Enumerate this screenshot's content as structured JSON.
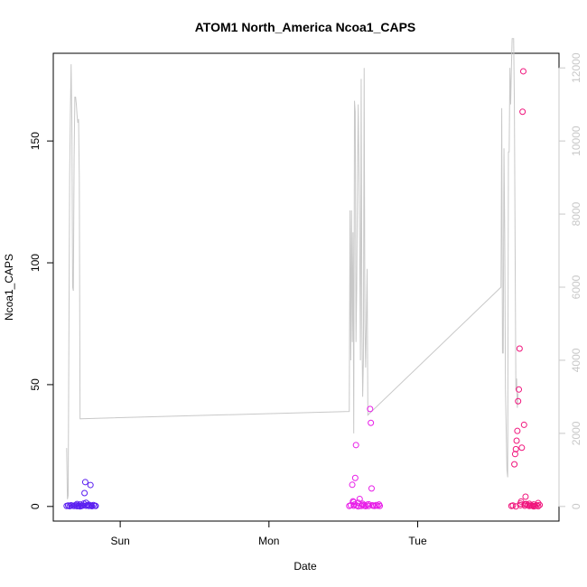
{
  "chart_data": {
    "type": "scatter",
    "title": "ATOM1 North_America Ncoa1_CAPS",
    "xlabel": "Date",
    "ylabel": "Ncoa1_CAPS",
    "x_unit": "days",
    "x_ticks": [
      {
        "label": "Sun",
        "value": 1.0
      },
      {
        "label": "Mon",
        "value": 2.0
      },
      {
        "label": "Tue",
        "value": 3.0
      }
    ],
    "xlim": [
      0.55,
      3.95
    ],
    "ylim": [
      -6,
      186
    ],
    "y_ticks": [
      0,
      50,
      100,
      150
    ],
    "y2lim": [
      -400,
      12400
    ],
    "y2_ticks": [
      0,
      2000,
      4000,
      6000,
      8000,
      10000,
      12000
    ],
    "grid": false,
    "series": [
      {
        "color": "#5a1ef0",
        "points": [
          [
            0.64,
            0.2
          ],
          [
            0.65,
            0.4
          ],
          [
            0.66,
            0.1
          ],
          [
            0.67,
            0.5
          ],
          [
            0.68,
            0.3
          ],
          [
            0.69,
            0.2
          ],
          [
            0.7,
            0.6
          ],
          [
            0.71,
            0.1
          ],
          [
            0.72,
            0.3
          ],
          [
            0.73,
            0.8
          ],
          [
            0.74,
            0.2
          ],
          [
            0.75,
            0.4
          ],
          [
            0.755,
            1.2
          ],
          [
            0.76,
            5.5
          ],
          [
            0.765,
            10.0
          ],
          [
            0.77,
            0.3
          ],
          [
            0.78,
            0.5
          ],
          [
            0.79,
            0.2
          ],
          [
            0.8,
            8.8
          ],
          [
            0.805,
            0.4
          ],
          [
            0.81,
            0.1
          ],
          [
            0.82,
            0.6
          ],
          [
            0.83,
            0.3
          ],
          [
            0.835,
            0.2
          ],
          [
            0.71,
            1.0
          ],
          [
            0.73,
            0.0
          ],
          [
            0.77,
            1.5
          ],
          [
            0.79,
            0.7
          ]
        ]
      },
      {
        "color": "#e81ee8",
        "points": [
          [
            2.54,
            0.2
          ],
          [
            2.55,
            0.5
          ],
          [
            2.56,
            8.9
          ],
          [
            2.565,
            2.1
          ],
          [
            2.57,
            0.3
          ],
          [
            2.575,
            0.8
          ],
          [
            2.58,
            11.7
          ],
          [
            2.585,
            25.2
          ],
          [
            2.59,
            0.4
          ],
          [
            2.6,
            1.5
          ],
          [
            2.61,
            3.1
          ],
          [
            2.62,
            0.2
          ],
          [
            2.63,
            0.6
          ],
          [
            2.64,
            0.3
          ],
          [
            2.65,
            0.1
          ],
          [
            2.66,
            0.7
          ],
          [
            2.67,
            0.2
          ],
          [
            2.68,
            40.0
          ],
          [
            2.685,
            34.3
          ],
          [
            2.69,
            7.4
          ],
          [
            2.695,
            0.5
          ],
          [
            2.7,
            0.3
          ],
          [
            2.71,
            0.2
          ],
          [
            2.72,
            0.6
          ],
          [
            2.73,
            0.3
          ],
          [
            2.74,
            0.8
          ],
          [
            2.745,
            0.2
          ],
          [
            2.57,
            1.8
          ],
          [
            2.6,
            0.0
          ],
          [
            2.63,
            1.1
          ],
          [
            2.67,
            0.9
          ]
        ]
      },
      {
        "color": "#f0147c",
        "points": [
          [
            3.63,
            0.2
          ],
          [
            3.64,
            0.4
          ],
          [
            3.65,
            17.3
          ],
          [
            3.655,
            21.5
          ],
          [
            3.66,
            23.5
          ],
          [
            3.665,
            27.0
          ],
          [
            3.67,
            31.0
          ],
          [
            3.675,
            43.2
          ],
          [
            3.68,
            48.0
          ],
          [
            3.685,
            64.8
          ],
          [
            3.69,
            0.5
          ],
          [
            3.695,
            2.0
          ],
          [
            3.7,
            24.1
          ],
          [
            3.705,
            162.0
          ],
          [
            3.71,
            178.6
          ],
          [
            3.715,
            33.5
          ],
          [
            3.72,
            0.3
          ],
          [
            3.725,
            4.0
          ],
          [
            3.73,
            1.0
          ],
          [
            3.74,
            0.6
          ],
          [
            3.75,
            0.2
          ],
          [
            3.76,
            0.4
          ],
          [
            3.77,
            0.3
          ],
          [
            3.78,
            0.8
          ],
          [
            3.79,
            0.2
          ],
          [
            3.8,
            0.5
          ],
          [
            3.81,
            0.1
          ],
          [
            3.82,
            0.6
          ],
          [
            3.66,
            0.0
          ],
          [
            3.69,
            1.2
          ],
          [
            3.72,
            0.9
          ],
          [
            3.75,
            1.1
          ],
          [
            3.78,
            0.0
          ],
          [
            3.81,
            1.4
          ]
        ]
      },
      {
        "axis": "secondary",
        "color": "#c8c8c8",
        "points": [
          [
            0.64,
            1600
          ],
          [
            0.645,
            200
          ],
          [
            0.65,
            300
          ],
          [
            0.66,
            9000
          ],
          [
            0.665,
            10800
          ],
          [
            0.67,
            12100
          ],
          [
            0.675,
            10500
          ],
          [
            0.68,
            6000
          ],
          [
            0.685,
            5900
          ],
          [
            0.69,
            9500
          ],
          [
            0.695,
            11200
          ],
          [
            0.7,
            11200
          ],
          [
            0.705,
            11000
          ],
          [
            0.71,
            10700
          ],
          [
            0.715,
            10500
          ],
          [
            0.72,
            10600
          ],
          [
            0.725,
            9000
          ],
          [
            0.73,
            2400
          ],
          [
            0.735,
            2400
          ],
          [
            2.54,
            2600
          ],
          [
            2.545,
            8100
          ],
          [
            2.55,
            4000
          ],
          [
            2.555,
            8100
          ],
          [
            2.56,
            4500
          ],
          [
            2.565,
            7500
          ],
          [
            2.57,
            2000
          ],
          [
            2.575,
            11100
          ],
          [
            2.58,
            10800
          ],
          [
            2.585,
            4500
          ],
          [
            2.59,
            6000
          ],
          [
            2.595,
            9000
          ],
          [
            2.6,
            11000
          ],
          [
            2.605,
            9200
          ],
          [
            2.61,
            7000
          ],
          [
            2.615,
            4000
          ],
          [
            2.62,
            11700
          ],
          [
            2.625,
            5000
          ],
          [
            2.63,
            3000
          ],
          [
            2.635,
            4000
          ],
          [
            2.64,
            12000
          ],
          [
            2.645,
            5000
          ],
          [
            2.65,
            3800
          ],
          [
            2.66,
            6500
          ],
          [
            2.665,
            2500
          ],
          [
            3.56,
            6000
          ],
          [
            3.565,
            10900
          ],
          [
            3.57,
            4200
          ],
          [
            3.575,
            4200
          ],
          [
            3.58,
            9800
          ],
          [
            3.585,
            7500
          ],
          [
            3.59,
            3200
          ],
          [
            3.6,
            1000
          ],
          [
            3.605,
            800
          ],
          [
            3.61,
            9700
          ],
          [
            3.615,
            9700
          ],
          [
            3.62,
            12000
          ],
          [
            3.625,
            11000
          ],
          [
            3.63,
            12000
          ],
          [
            3.635,
            12800
          ],
          [
            3.64,
            12800
          ],
          [
            3.645,
            12800
          ],
          [
            3.65,
            11000
          ],
          [
            3.655,
            7000
          ],
          [
            3.66,
            3200
          ],
          [
            3.665,
            3500
          ],
          [
            3.67,
            2700
          ],
          [
            3.675,
            3100
          ]
        ]
      }
    ]
  }
}
